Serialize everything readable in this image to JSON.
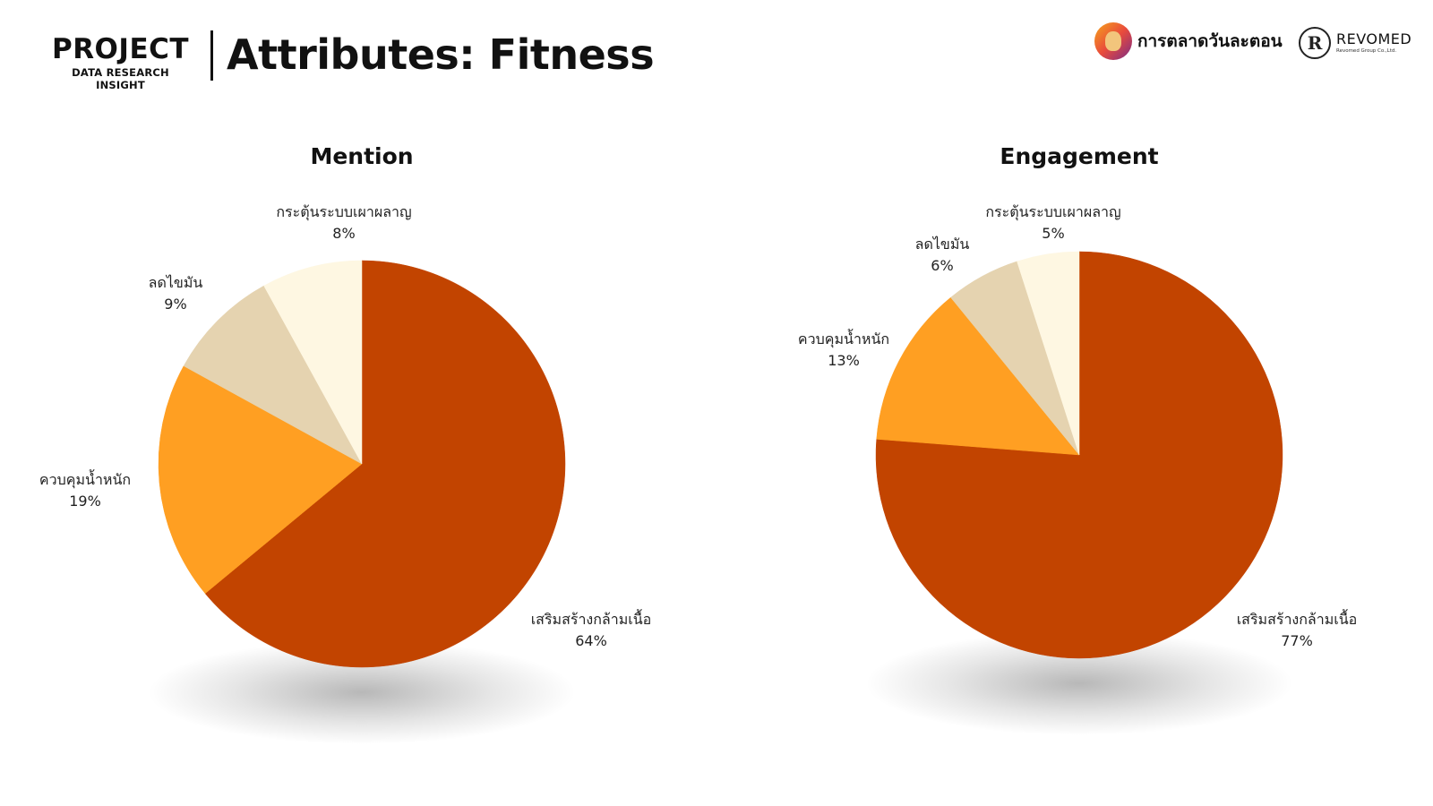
{
  "header": {
    "brand_main": "PROJECT",
    "brand_sub": "DATA RESEARCH INSIGHT",
    "title": "Attributes: Fitness"
  },
  "logos": {
    "marketing_name": "การตลาดวันละตอน",
    "marketing_icon": "avatar-logo",
    "revomed_mark": "R",
    "revomed_name": "REVOMED",
    "revomed_sub": "Revomed Group Co.,Ltd."
  },
  "colors": {
    "muscle": "#c24400",
    "weight": "#ff9f22",
    "fat": "#e5d3b0",
    "metabolism": "#fef7e2"
  },
  "chart_data": [
    {
      "type": "pie",
      "title": "Mention",
      "slices": [
        {
          "label": "เสริมสร้างกล้ามเนื้อ",
          "value": 64,
          "display": "64%",
          "color": "#c24400"
        },
        {
          "label": "ควบคุมน้ำหนัก",
          "value": 19,
          "display": "19%",
          "color": "#ff9f22"
        },
        {
          "label": "ลดไขมัน",
          "value": 9,
          "display": "9%",
          "color": "#e5d3b0"
        },
        {
          "label": "กระตุ้นระบบเผาผลาญ",
          "value": 8,
          "display": "8%",
          "color": "#fef7e2"
        }
      ]
    },
    {
      "type": "pie",
      "title": "Engagement",
      "slices": [
        {
          "label": "เสริมสร้างกล้ามเนื้อ",
          "value": 77,
          "display": "77%",
          "color": "#c24400"
        },
        {
          "label": "ควบคุมน้ำหนัก",
          "value": 13,
          "display": "13%",
          "color": "#ff9f22"
        },
        {
          "label": "ลดไขมัน",
          "value": 6,
          "display": "6%",
          "color": "#e5d3b0"
        },
        {
          "label": "กระตุ้นระบบเผาผลาญ",
          "value": 5,
          "display": "5%",
          "color": "#fef7e2"
        }
      ]
    }
  ]
}
